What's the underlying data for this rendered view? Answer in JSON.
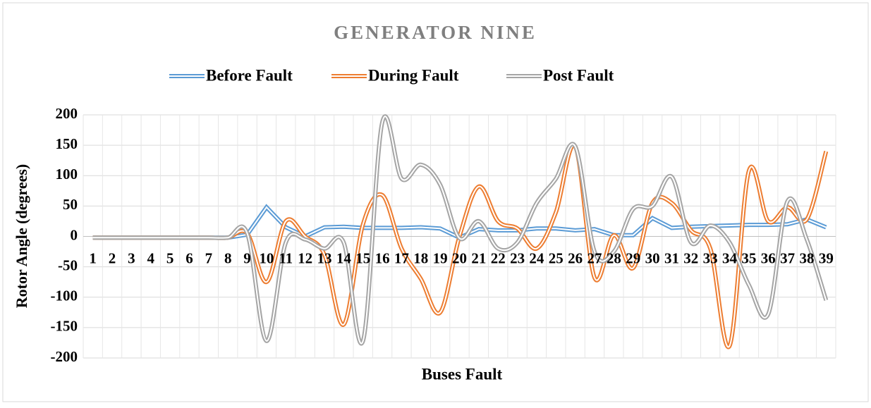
{
  "chart_data": {
    "type": "line",
    "title": "GENERATOR NINE",
    "x_label": "Buses Fault",
    "y_label": "Rotor Angle (degrees)",
    "categories": [
      "1",
      "2",
      "3",
      "4",
      "5",
      "6",
      "7",
      "8",
      "9",
      "10",
      "11",
      "12",
      "13",
      "14",
      "15",
      "16",
      "17",
      "18",
      "19",
      "20",
      "21",
      "22",
      "23",
      "24",
      "25",
      "26",
      "27",
      "28",
      "29",
      "30",
      "31",
      "32",
      "33",
      "34",
      "35",
      "36",
      "37",
      "38",
      "39"
    ],
    "series": [
      {
        "name": "Before Fault",
        "color": "#5b9bd5",
        "smooth": false,
        "values": [
          -2,
          -2,
          -2,
          -2,
          -2,
          -2,
          -2,
          -2,
          3,
          48,
          15,
          0,
          15,
          16,
          14,
          14,
          14,
          15,
          13,
          -2,
          12,
          10,
          10,
          13,
          13,
          10,
          12,
          2,
          2,
          30,
          14,
          16,
          17,
          18,
          19,
          19,
          20,
          28,
          15
        ]
      },
      {
        "name": "During Fault",
        "color": "#ed7d31",
        "smooth": true,
        "values": [
          -2,
          -2,
          -2,
          -2,
          -2,
          -2,
          -2,
          -2,
          5,
          -75,
          25,
          0,
          -30,
          -145,
          20,
          68,
          -20,
          -70,
          -125,
          0,
          82,
          25,
          13,
          -20,
          40,
          148,
          -68,
          2,
          -52,
          55,
          55,
          10,
          -20,
          -180,
          108,
          25,
          48,
          28,
          140
        ]
      },
      {
        "name": "Post Fault",
        "color": "#a5a5a5",
        "smooth": true,
        "values": [
          -2,
          -2,
          -2,
          -2,
          -2,
          -2,
          -2,
          -2,
          5,
          -172,
          -10,
          -5,
          -20,
          -10,
          -172,
          188,
          95,
          118,
          85,
          -3,
          25,
          -20,
          -10,
          55,
          95,
          148,
          -25,
          -25,
          45,
          50,
          98,
          -10,
          18,
          -10,
          -80,
          -128,
          58,
          -5,
          -105
        ]
      }
    ],
    "ylim": [
      -200,
      200
    ],
    "yticks": [
      -200,
      -150,
      -100,
      -50,
      0,
      50,
      100,
      150,
      200
    ],
    "grid": true
  }
}
